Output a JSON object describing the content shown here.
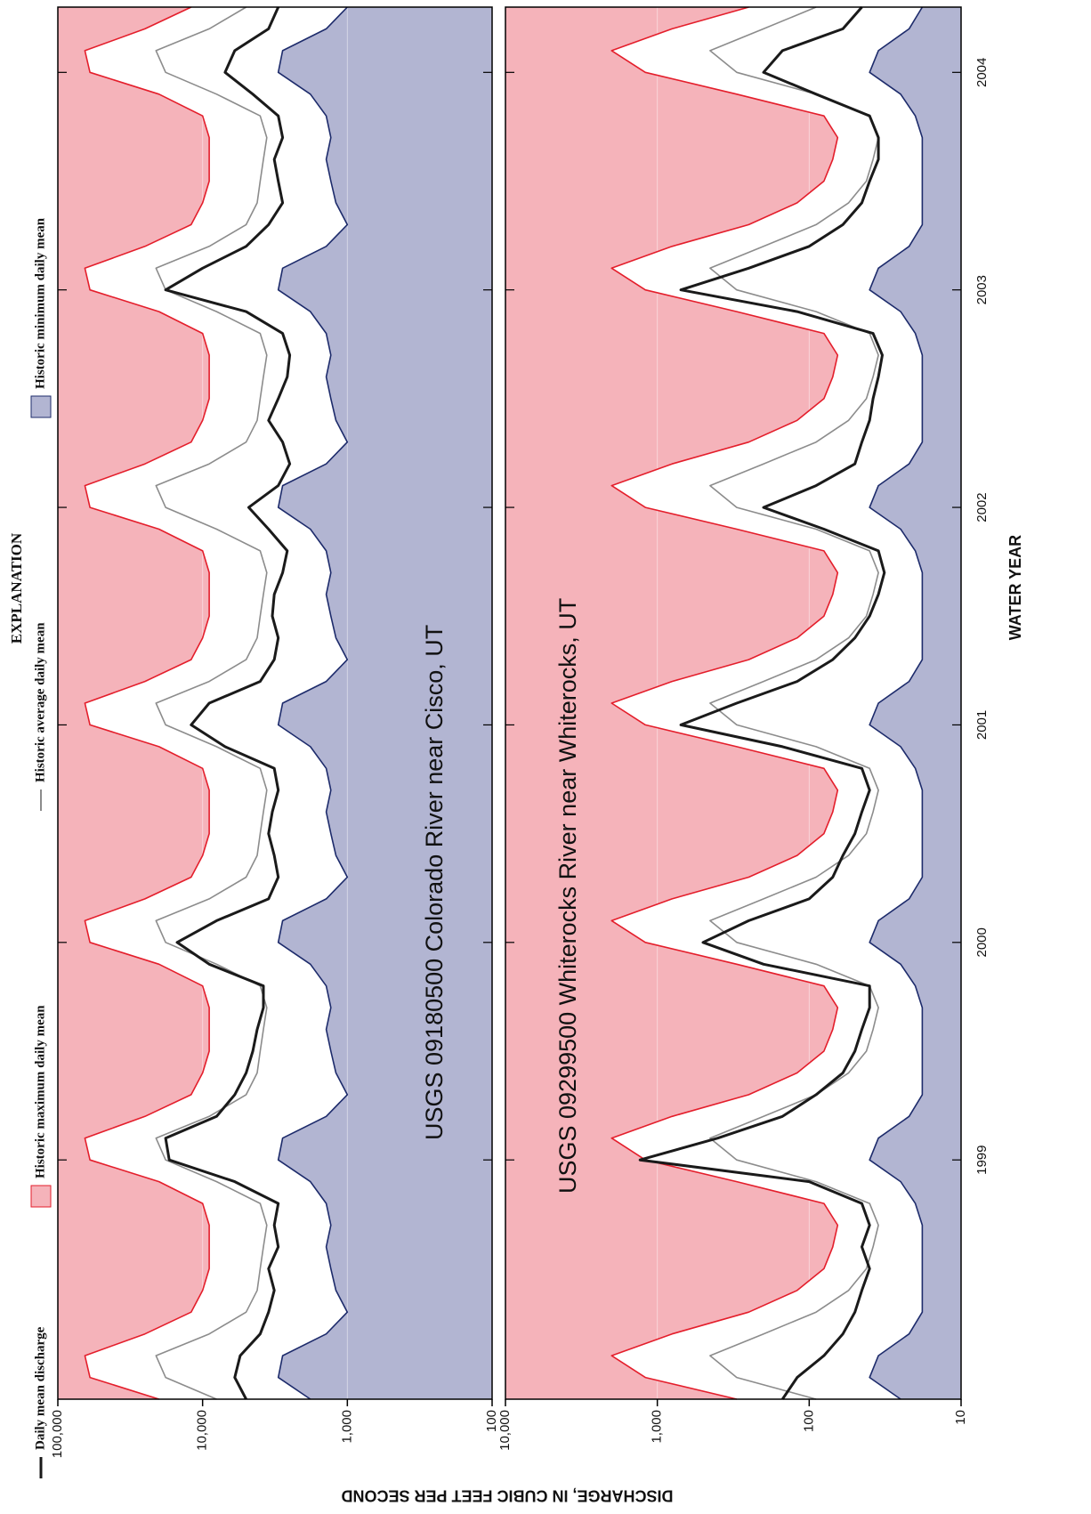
{
  "explanation": {
    "title": "EXPLANATION",
    "items": [
      {
        "name": "Daily mean discharge",
        "color": "#1a1a1a",
        "style": "line"
      },
      {
        "name": "Historic maximum daily mean",
        "color": "#e41e2b",
        "fill": "#f5b3ba",
        "style": "fill-above"
      },
      {
        "name": "Historic average daily mean",
        "color": "#8c8c8c",
        "style": "line"
      },
      {
        "name": "Historic minimum daily mean",
        "color": "#1d2b6b",
        "fill": "#b2b5d2",
        "style": "fill-below"
      }
    ]
  },
  "x_axis_label": "WATER YEAR",
  "y_axis_label": "DISCHARGE, IN CUBIC FEET PER SECOND",
  "chart_data": [
    {
      "type": "line",
      "log_scale": true,
      "grid": true,
      "annotation": "USGS 09180500 Colorado River near Cisco, UT",
      "x": [
        1998.3,
        1998.4,
        1998.5,
        1998.6,
        1998.7,
        1998.8,
        1998.9,
        1999,
        1999.1,
        1999.2,
        1999.3,
        1999.4,
        1999.5,
        1999.6,
        1999.7,
        1999.8,
        1999.9,
        2000,
        2000.1,
        2000.2,
        2000.3,
        2000.4,
        2000.5,
        2000.6,
        2000.7,
        2000.8,
        2000.9,
        2001,
        2001.1,
        2001.2,
        2001.3,
        2001.4,
        2001.5,
        2001.6,
        2001.7,
        2001.8,
        2001.9,
        2002,
        2002.1,
        2002.2,
        2002.3,
        2002.4,
        2002.5,
        2002.6,
        2002.7,
        2002.8,
        2002.9,
        2003,
        2003.1,
        2003.2,
        2003.3,
        2003.4,
        2003.5,
        2003.6,
        2003.7,
        2003.8,
        2003.9,
        2004,
        2004.1,
        2004.2,
        2004.3,
        2004.4,
        2004.5,
        2004.6,
        2004.7
      ],
      "xlim": [
        1998.3,
        2004.7
      ],
      "xticks": [
        1999.4,
        2000.4,
        2001.4,
        2002.4,
        2003.4,
        2004.4
      ],
      "ylim": [
        100,
        100000
      ],
      "yticks": [
        100,
        {
          "value": 1000,
          "label": "1,000"
        },
        {
          "value": 10000,
          "label": "10,000"
        },
        {
          "value": 100000,
          "label": "100,000"
        }
      ],
      "series": [
        {
          "values": [
            5000,
            6000,
            5500,
            4000,
            3500,
            3200,
            3500,
            3000,
            3200,
            3000,
            6000,
            17000,
            18000,
            8000,
            6000,
            5000,
            4500,
            4200,
            3800,
            3800,
            9000,
            15000,
            8000,
            3500,
            3000,
            3200,
            3500,
            3300,
            3000,
            3200,
            7000,
            12000,
            9000,
            4000,
            3200,
            3000,
            3300,
            3200,
            2800,
            2600,
            3500,
            4800,
            3000,
            2500,
            2800,
            3500,
            3000,
            2600,
            2500,
            2800,
            5000,
            18000,
            10000,
            5000,
            3500,
            2800,
            3000,
            3200,
            2800,
            3000,
            4500,
            7000,
            6000,
            3500,
            3000
          ]
        },
        {
          "values": [
            20000,
            60000,
            65000,
            25000,
            12000,
            10000,
            9000,
            9000,
            9000,
            10000,
            20000,
            60000,
            65000,
            25000,
            12000,
            10000,
            9000,
            9000,
            9000,
            10000,
            20000,
            60000,
            65000,
            25000,
            12000,
            10000,
            9000,
            9000,
            9000,
            10000,
            20000,
            60000,
            65000,
            25000,
            12000,
            10000,
            9000,
            9000,
            9000,
            10000,
            20000,
            60000,
            65000,
            25000,
            12000,
            10000,
            9000,
            9000,
            9000,
            10000,
            20000,
            60000,
            65000,
            25000,
            12000,
            10000,
            9000,
            9000,
            9000,
            10000,
            20000,
            60000,
            65000,
            25000,
            12000
          ]
        },
        {
          "values": [
            8000,
            18000,
            21000,
            9000,
            5000,
            4200,
            4000,
            3800,
            3600,
            4000,
            8000,
            18000,
            21000,
            9000,
            5000,
            4200,
            4000,
            3800,
            3600,
            4000,
            8000,
            18000,
            21000,
            9000,
            5000,
            4200,
            4000,
            3800,
            3600,
            4000,
            8000,
            18000,
            21000,
            9000,
            5000,
            4200,
            4000,
            3800,
            3600,
            4000,
            8000,
            18000,
            21000,
            9000,
            5000,
            4200,
            4000,
            3800,
            3600,
            4000,
            8000,
            18000,
            21000,
            9000,
            5000,
            4200,
            4000,
            3800,
            3600,
            4000,
            8000,
            18000,
            21000,
            9000,
            5000
          ]
        },
        {
          "values": [
            1800,
            3000,
            2800,
            1400,
            1000,
            1200,
            1300,
            1400,
            1300,
            1400,
            1800,
            3000,
            2800,
            1400,
            1000,
            1200,
            1300,
            1400,
            1300,
            1400,
            1800,
            3000,
            2800,
            1400,
            1000,
            1200,
            1300,
            1400,
            1300,
            1400,
            1800,
            3000,
            2800,
            1400,
            1000,
            1200,
            1300,
            1400,
            1300,
            1400,
            1800,
            3000,
            2800,
            1400,
            1000,
            1200,
            1300,
            1400,
            1300,
            1400,
            1800,
            3000,
            2800,
            1400,
            1000,
            1200,
            1300,
            1400,
            1300,
            1400,
            1800,
            3000,
            2800,
            1400,
            1000
          ]
        }
      ]
    },
    {
      "type": "line",
      "log_scale": true,
      "grid": true,
      "annotation": "USGS 09299500 Whiterocks River near Whiterocks, UT",
      "x": [
        1998.3,
        1998.4,
        1998.5,
        1998.6,
        1998.7,
        1998.8,
        1998.9,
        1999,
        1999.1,
        1999.2,
        1999.3,
        1999.4,
        1999.5,
        1999.6,
        1999.7,
        1999.8,
        1999.9,
        2000,
        2000.1,
        2000.2,
        2000.3,
        2000.4,
        2000.5,
        2000.6,
        2000.7,
        2000.8,
        2000.9,
        2001,
        2001.1,
        2001.2,
        2001.3,
        2001.4,
        2001.5,
        2001.6,
        2001.7,
        2001.8,
        2001.9,
        2002,
        2002.1,
        2002.2,
        2002.3,
        2002.4,
        2002.5,
        2002.6,
        2002.7,
        2002.8,
        2002.9,
        2003,
        2003.1,
        2003.2,
        2003.3,
        2003.4,
        2003.5,
        2003.6,
        2003.7,
        2003.8,
        2003.9,
        2004,
        2004.1,
        2004.2,
        2004.3,
        2004.4,
        2004.5,
        2004.6,
        2004.7
      ],
      "xlim": [
        1998.3,
        2004.7
      ],
      "xticks": [
        {
          "value": 1999.4,
          "label": "1999"
        },
        {
          "value": 2000.4,
          "label": "2000"
        },
        {
          "value": 2001.4,
          "label": "2001"
        },
        {
          "value": 2002.4,
          "label": "2002"
        },
        {
          "value": 2003.4,
          "label": "2003"
        },
        {
          "value": 2004.4,
          "label": "2004"
        }
      ],
      "ylim": [
        10,
        10000
      ],
      "yticks": [
        10,
        100,
        {
          "value": 1000,
          "label": "1,000"
        },
        {
          "value": 10000,
          "label": "10,000"
        }
      ],
      "series": [
        {
          "values": [
            150,
            120,
            80,
            60,
            50,
            45,
            40,
            45,
            40,
            45,
            100,
            1300,
            400,
            150,
            90,
            60,
            50,
            45,
            40,
            40,
            200,
            500,
            250,
            100,
            70,
            60,
            50,
            45,
            40,
            45,
            150,
            700,
            300,
            120,
            70,
            50,
            40,
            35,
            32,
            35,
            80,
            200,
            90,
            50,
            45,
            40,
            38,
            35,
            33,
            38,
            120,
            700,
            250,
            100,
            60,
            45,
            40,
            35,
            35,
            40,
            90,
            200,
            150,
            60,
            45
          ]
        },
        {
          "values": [
            300,
            1200,
            2000,
            800,
            250,
            120,
            80,
            70,
            65,
            80,
            300,
            1200,
            2000,
            800,
            250,
            120,
            80,
            70,
            65,
            80,
            300,
            1200,
            2000,
            800,
            250,
            120,
            80,
            70,
            65,
            80,
            300,
            1200,
            2000,
            800,
            250,
            120,
            80,
            70,
            65,
            80,
            300,
            1200,
            2000,
            800,
            250,
            120,
            80,
            70,
            65,
            80,
            300,
            1200,
            2000,
            800,
            250,
            120,
            80,
            70,
            65,
            80,
            300,
            1200,
            2000,
            800,
            250
          ]
        },
        {
          "values": [
            90,
            300,
            450,
            200,
            90,
            55,
            42,
            38,
            35,
            40,
            90,
            300,
            450,
            200,
            90,
            55,
            42,
            38,
            35,
            40,
            90,
            300,
            450,
            200,
            90,
            55,
            42,
            38,
            35,
            40,
            90,
            300,
            450,
            200,
            90,
            55,
            42,
            38,
            35,
            40,
            90,
            300,
            450,
            200,
            90,
            55,
            42,
            38,
            35,
            40,
            90,
            300,
            450,
            200,
            90,
            55,
            42,
            38,
            35,
            40,
            90,
            300,
            450,
            200,
            90
          ]
        },
        {
          "values": [
            25,
            40,
            35,
            22,
            18,
            18,
            18,
            18,
            18,
            20,
            25,
            40,
            35,
            22,
            18,
            18,
            18,
            18,
            18,
            20,
            25,
            40,
            35,
            22,
            18,
            18,
            18,
            18,
            18,
            20,
            25,
            40,
            35,
            22,
            18,
            18,
            18,
            18,
            18,
            20,
            25,
            40,
            35,
            22,
            18,
            18,
            18,
            18,
            18,
            20,
            25,
            40,
            35,
            22,
            18,
            18,
            18,
            18,
            18,
            20,
            25,
            40,
            35,
            22,
            18
          ]
        }
      ]
    }
  ]
}
